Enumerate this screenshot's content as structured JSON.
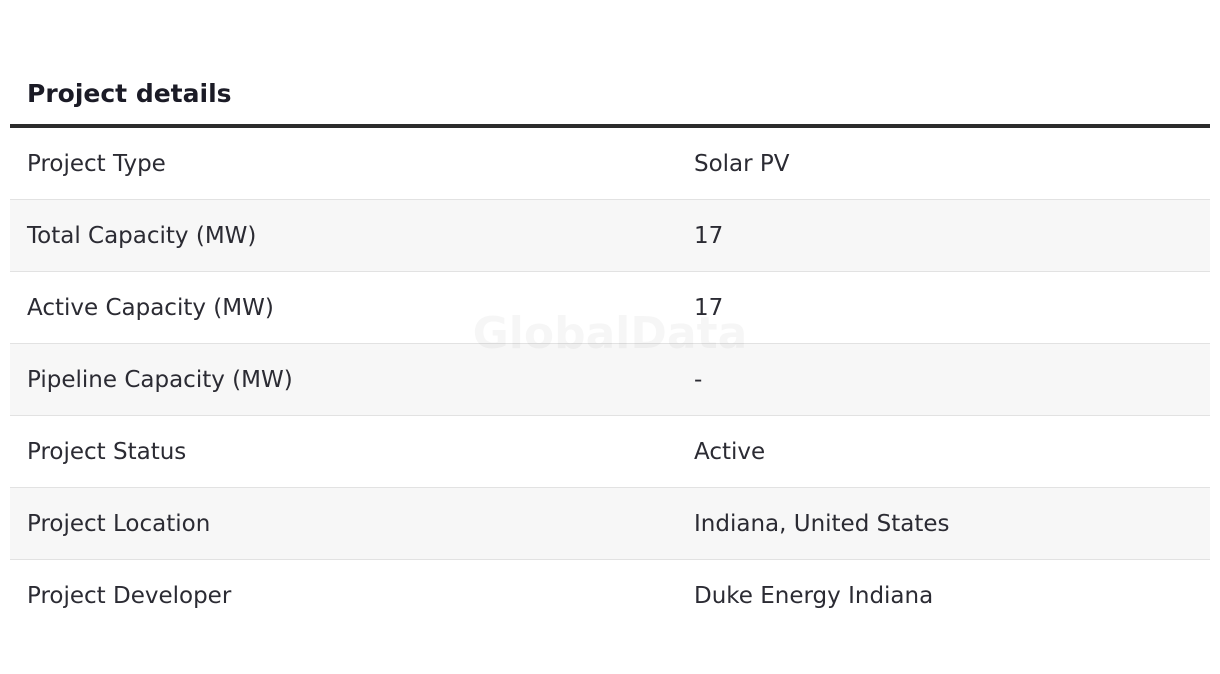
{
  "header": {
    "title": "Project details"
  },
  "watermark": "GlobalData",
  "table": {
    "rows": [
      [
        "Project Type",
        "Solar PV"
      ],
      [
        "Total Capacity (MW)",
        "17"
      ],
      [
        "Active Capacity (MW)",
        "17"
      ],
      [
        "Pipeline Capacity (MW)",
        "-"
      ],
      [
        "Project Status",
        "Active"
      ],
      [
        "Project Location",
        "Indiana, United States"
      ],
      [
        "Project Developer",
        "Duke Energy Indiana"
      ]
    ]
  }
}
